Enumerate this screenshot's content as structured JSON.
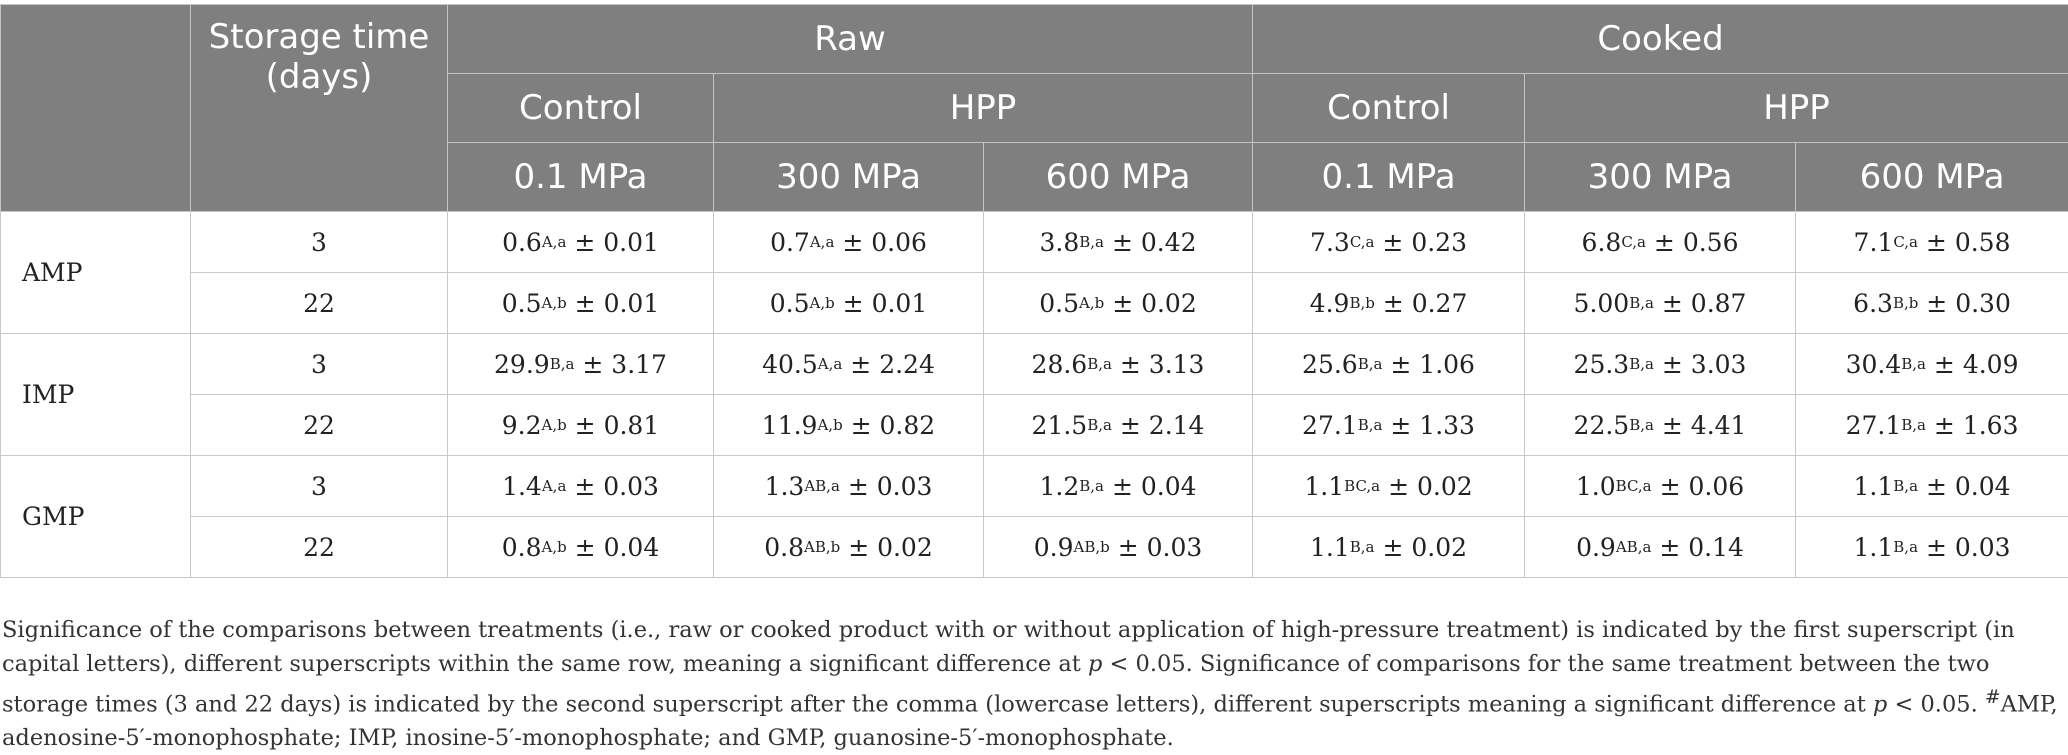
{
  "header": {
    "storage_label": "Storage time (days)",
    "raw": "Raw",
    "cooked": "Cooked",
    "control": "Control",
    "hpp": "HPP",
    "p01": "0.1 MPa",
    "p300": "300 MPa",
    "p600": "600 MPa"
  },
  "rows": [
    {
      "compound": "AMP",
      "time": "3",
      "cells": [
        {
          "v": "0.6",
          "s": "A,a",
          "e": "± 0.01"
        },
        {
          "v": "0.7",
          "s": "A,a",
          "e": "± 0.06"
        },
        {
          "v": "3.8",
          "s": "B,a",
          "e": "± 0.42"
        },
        {
          "v": "7.3",
          "s": "C,a",
          "e": "± 0.23"
        },
        {
          "v": "6.8",
          "s": "C,a",
          "e": "± 0.56"
        },
        {
          "v": "7.1",
          "s": "C,a",
          "e": "± 0.58"
        }
      ]
    },
    {
      "compound": "",
      "time": "22",
      "cells": [
        {
          "v": "0.5",
          "s": "A,b",
          "e": "± 0.01"
        },
        {
          "v": "0.5",
          "s": "A,b",
          "e": "± 0.01"
        },
        {
          "v": "0.5",
          "s": "A,b",
          "e": "± 0.02"
        },
        {
          "v": "4.9",
          "s": "B,b",
          "e": "± 0.27"
        },
        {
          "v": "5.00",
          "s": "B,a",
          "e": "± 0.87"
        },
        {
          "v": "6.3",
          "s": "B,b",
          "e": "± 0.30"
        }
      ]
    },
    {
      "compound": "IMP",
      "time": "3",
      "cells": [
        {
          "v": "29.9",
          "s": "B,a",
          "e": "± 3.17"
        },
        {
          "v": "40.5",
          "s": "A,a",
          "e": "± 2.24"
        },
        {
          "v": "28.6",
          "s": "B,a",
          "e": "± 3.13"
        },
        {
          "v": "25.6",
          "s": "B,a",
          "e": "± 1.06"
        },
        {
          "v": "25.3",
          "s": "B,a",
          "e": "± 3.03"
        },
        {
          "v": "30.4",
          "s": "B,a",
          "e": "± 4.09"
        }
      ]
    },
    {
      "compound": "",
      "time": "22",
      "cells": [
        {
          "v": "9.2",
          "s": "A,b",
          "e": "± 0.81"
        },
        {
          "v": "11.9",
          "s": "A,b",
          "e": "± 0.82"
        },
        {
          "v": "21.5",
          "s": "B,a",
          "e": "± 2.14"
        },
        {
          "v": "27.1",
          "s": "B,a",
          "e": "± 1.33"
        },
        {
          "v": "22.5",
          "s": "B,a",
          "e": "± 4.41"
        },
        {
          "v": "27.1",
          "s": "B,a",
          "e": "± 1.63"
        }
      ]
    },
    {
      "compound": "GMP",
      "time": "3",
      "cells": [
        {
          "v": "1.4",
          "s": "A,a",
          "e": "± 0.03"
        },
        {
          "v": "1.3",
          "s": "AB,a",
          "e": "± 0.03"
        },
        {
          "v": "1.2",
          "s": "B,a",
          "e": "± 0.04"
        },
        {
          "v": "1.1",
          "s": "BC,a",
          "e": "± 0.02"
        },
        {
          "v": "1.0",
          "s": "BC,a",
          "e": "± 0.06"
        },
        {
          "v": "1.1",
          "s": "B,a",
          "e": "± 0.04"
        }
      ]
    },
    {
      "compound": "",
      "time": "22",
      "cells": [
        {
          "v": "0.8",
          "s": "A,b",
          "e": "± 0.04"
        },
        {
          "v": "0.8",
          "s": "AB,b",
          "e": "± 0.02"
        },
        {
          "v": "0.9",
          "s": "AB,b",
          "e": "± 0.03"
        },
        {
          "v": "1.1",
          "s": "B,a",
          "e": "± 0.02"
        },
        {
          "v": "0.9",
          "s": "AB,a",
          "e": "± 0.14"
        },
        {
          "v": "1.1",
          "s": "B,a",
          "e": "± 0.03"
        }
      ]
    }
  ],
  "notes": {
    "n1": "Significance of the comparisons between treatments (i.e., raw or cooked product with or without application of high-pressure treatment) is indicated by the first superscript (in capital letters), different superscripts within the same row, meaning a significant difference at ",
    "p1": "p",
    "n2": " < 0.05. Significance of comparisons for the same treatment between the two storage times (3 and 22 days) is indicated by the second superscript after the comma (lowercase letters), different superscripts meaning a significant difference at ",
    "p2": "p",
    "n3": " < 0.05. ",
    "hash": "#",
    "n4": "AMP, adenosine-5′-monophosphate; IMP, inosine-5′-monophosphate; and GMP, guanosine-5′-monophosphate."
  }
}
